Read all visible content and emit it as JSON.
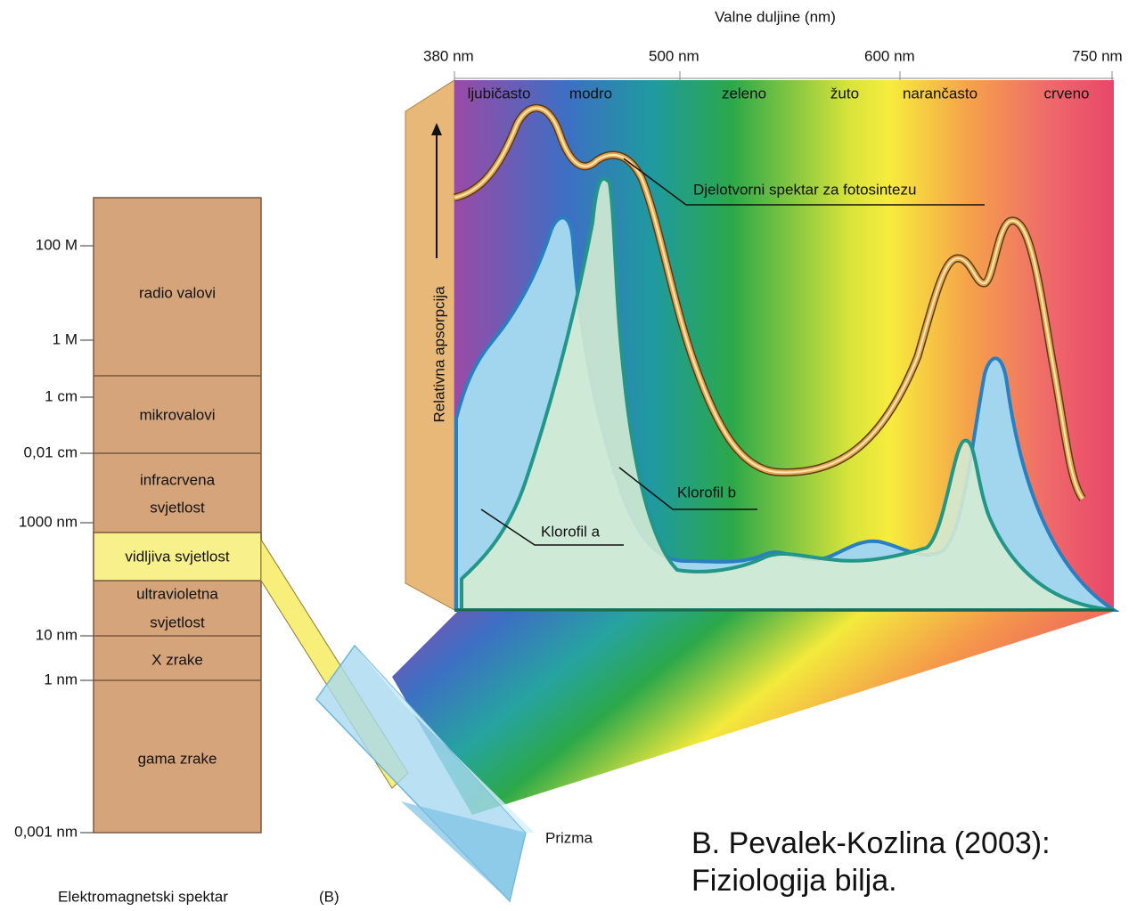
{
  "em_spectrum": {
    "scale_labels": [
      "100 M",
      "1 M",
      "1 cm",
      "0,01 cm",
      "1000 nm",
      "10 nm",
      "1 nm",
      "0,001 nm"
    ],
    "bands": [
      {
        "lines": [
          "radio valovi"
        ]
      },
      {
        "lines": [
          "mikrovalovi"
        ]
      },
      {
        "lines": [
          "infracrvena",
          "svjetlost"
        ]
      },
      {
        "lines": [
          "vidljiva svjetlost"
        ]
      },
      {
        "lines": [
          "ultravioletna",
          "svjetlost"
        ]
      },
      {
        "lines": [
          "X zrake"
        ]
      },
      {
        "lines": [
          "gama zrake"
        ]
      }
    ],
    "caption": "Elektromagnetski spektar",
    "panel": "(B)"
  },
  "prism_label": "Prizma",
  "absorption_chart": {
    "x_title": "Valne duljine (nm)",
    "wavelength_labels": [
      "380 nm",
      "500 nm",
      "600 nm",
      "750 nm"
    ],
    "color_names": [
      "ljubičasto",
      "modro",
      "zeleno",
      "žuto",
      "narančasto",
      "crveno"
    ],
    "y_title": "Relativna apsorpcija",
    "curve_labels": {
      "action_spectrum": "Djelotvorni spektar za fotosintezu",
      "chlorophyll_b": "Klorofil b",
      "chlorophyll_a": "Klorofil a"
    }
  },
  "citation": [
    "B. Pevalek-Kozlina (2003):",
    "Fiziologija bilja."
  ]
}
